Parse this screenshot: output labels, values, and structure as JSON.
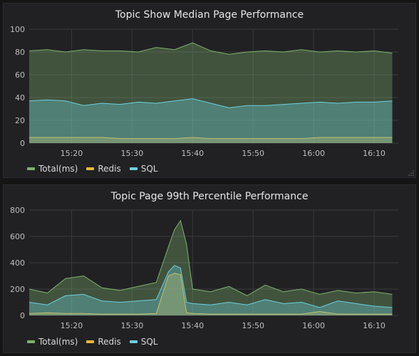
{
  "panels": [
    {
      "title": "Topic Show Median Page Performance",
      "legend": [
        {
          "label": "Total(ms)",
          "color": "#7eb26d"
        },
        {
          "label": "Redis",
          "color": "#eab839"
        },
        {
          "label": "SQL",
          "color": "#6ed0e0"
        }
      ]
    },
    {
      "title": "Topic Page 99th Percentile Performance",
      "legend": [
        {
          "label": "Total(ms)",
          "color": "#7eb26d"
        },
        {
          "label": "Redis",
          "color": "#eab839"
        },
        {
          "label": "SQL",
          "color": "#6ed0e0"
        }
      ]
    }
  ],
  "chart_data": [
    {
      "type": "area",
      "title": "Topic Show Median Page Performance",
      "x_ticks": [
        "15:20",
        "15:30",
        "15:40",
        "15:50",
        "16:00",
        "16:10"
      ],
      "x_range": [
        "15:13",
        "16:14"
      ],
      "y_ticks": [
        "0",
        "20",
        "40",
        "60",
        "80",
        "100"
      ],
      "ylim": [
        0,
        100
      ],
      "grid": true,
      "legend_position": "bottom-left",
      "x": [
        "15:13",
        "15:16",
        "15:19",
        "15:22",
        "15:25",
        "15:28",
        "15:31",
        "15:34",
        "15:37",
        "15:40",
        "15:43",
        "15:46",
        "15:49",
        "15:52",
        "15:55",
        "15:58",
        "16:01",
        "16:04",
        "16:07",
        "16:10",
        "16:13"
      ],
      "series": [
        {
          "name": "Total(ms)",
          "color": "#7eb26d",
          "values": [
            81,
            82,
            80,
            82,
            81,
            81,
            80,
            84,
            82,
            88,
            81,
            78,
            80,
            81,
            80,
            82,
            80,
            81,
            80,
            81,
            79
          ]
        },
        {
          "name": "Redis",
          "color": "#eab839",
          "values": [
            5,
            5,
            5,
            5,
            5,
            4,
            4,
            4,
            4,
            5,
            4,
            4,
            4,
            4,
            4,
            4,
            5,
            5,
            5,
            5,
            5
          ]
        },
        {
          "name": "SQL",
          "color": "#6ed0e0",
          "values": [
            37,
            38,
            37,
            33,
            35,
            34,
            36,
            35,
            37,
            39,
            35,
            31,
            33,
            33,
            34,
            35,
            36,
            35,
            36,
            36,
            37
          ]
        }
      ]
    },
    {
      "type": "area",
      "title": "Topic Page 99th Percentile Performance",
      "x_ticks": [
        "15:20",
        "15:30",
        "15:40",
        "15:50",
        "16:00",
        "16:10"
      ],
      "x_range": [
        "15:13",
        "16:14"
      ],
      "y_ticks": [
        "0",
        "200",
        "400",
        "600",
        "800"
      ],
      "ylim": [
        0,
        800
      ],
      "grid": true,
      "legend_position": "bottom-left",
      "x": [
        "15:13",
        "15:16",
        "15:19",
        "15:22",
        "15:25",
        "15:28",
        "15:31",
        "15:34",
        "15:36",
        "15:37",
        "15:38",
        "15:39",
        "15:40",
        "15:43",
        "15:46",
        "15:49",
        "15:52",
        "15:55",
        "15:58",
        "16:01",
        "16:04",
        "16:07",
        "16:10",
        "16:13"
      ],
      "series": [
        {
          "name": "Total(ms)",
          "color": "#7eb26d",
          "values": [
            200,
            170,
            280,
            300,
            210,
            190,
            220,
            250,
            520,
            650,
            720,
            540,
            200,
            180,
            220,
            150,
            230,
            180,
            200,
            160,
            190,
            170,
            180,
            160
          ]
        },
        {
          "name": "Redis",
          "color": "#eab839",
          "values": [
            15,
            20,
            15,
            15,
            10,
            10,
            10,
            15,
            300,
            320,
            310,
            20,
            15,
            10,
            10,
            10,
            10,
            10,
            10,
            30,
            10,
            10,
            10,
            10
          ]
        },
        {
          "name": "SQL",
          "color": "#6ed0e0",
          "values": [
            100,
            80,
            150,
            160,
            110,
            100,
            110,
            120,
            330,
            380,
            360,
            100,
            90,
            80,
            100,
            80,
            120,
            90,
            100,
            60,
            110,
            90,
            70,
            60
          ]
        }
      ]
    }
  ]
}
